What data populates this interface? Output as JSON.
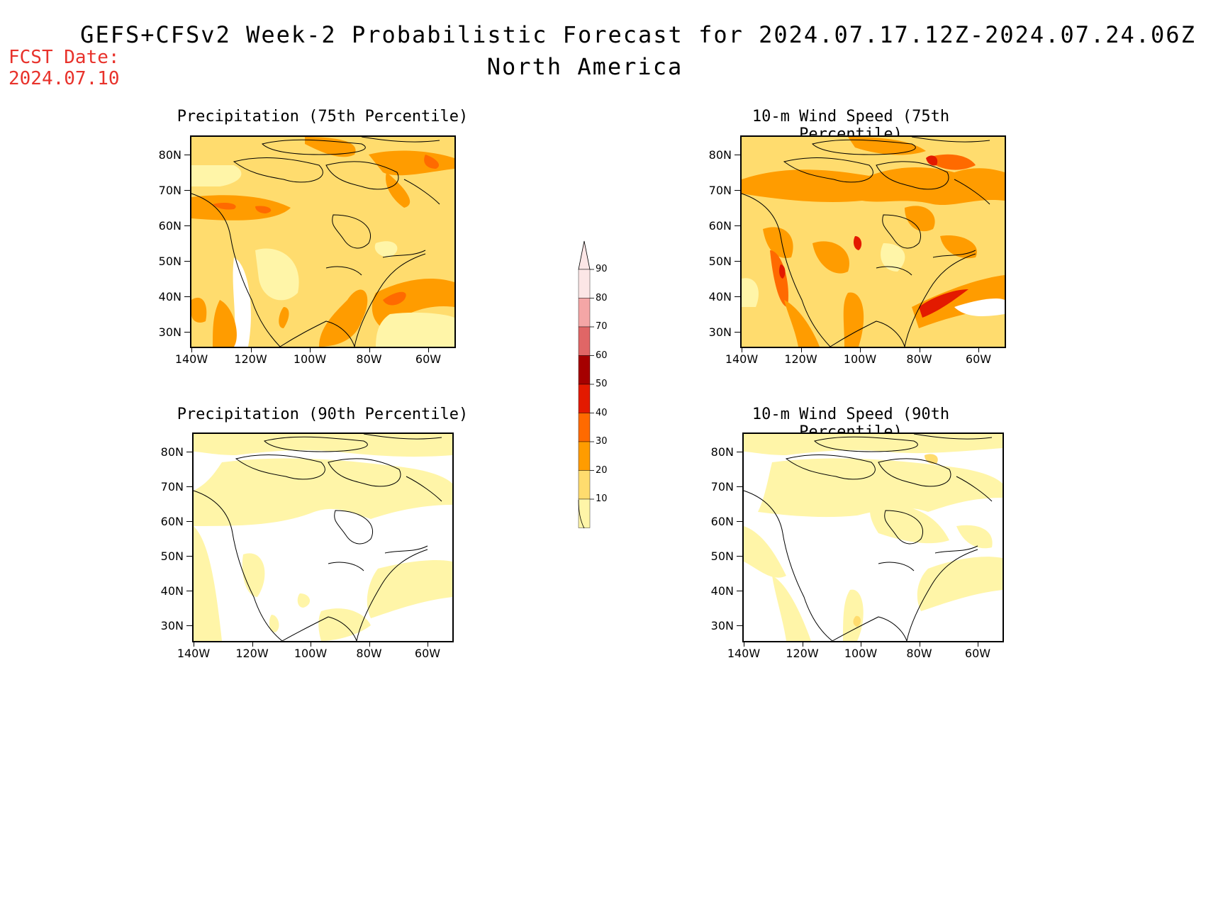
{
  "header": {
    "title": "GEFS+CFSv2 Week-2 Probabilistic Forecast for 2024.07.17.12Z-2024.07.24.06Z",
    "subtitle": "North America",
    "fcst_label_line1": "FCST Date:",
    "fcst_label_line2": "2024.07.10"
  },
  "panels": [
    {
      "id": "precip75",
      "title": "Precipitation (75th Percentile)"
    },
    {
      "id": "wind75",
      "title": "10-m Wind Speed (75th Percentile)"
    },
    {
      "id": "precip90",
      "title": "Precipitation (90th Percentile)"
    },
    {
      "id": "wind90",
      "title": "10-m Wind Speed (90th Percentile)"
    }
  ],
  "axes": {
    "lat_labels": [
      "80N",
      "70N",
      "60N",
      "50N",
      "40N",
      "30N"
    ],
    "lon_labels": [
      "140W",
      "120W",
      "100W",
      "80W",
      "60W"
    ]
  },
  "colorbar": {
    "levels": [
      "90",
      "80",
      "70",
      "60",
      "50",
      "40",
      "30",
      "20",
      "10"
    ],
    "colors": [
      "#fce6e6",
      "#f4a6a6",
      "#e06666",
      "#a50000",
      "#e31a00",
      "#ff6a00",
      "#ff9c00",
      "#ffdc6e",
      "#fff5a8"
    ]
  }
}
